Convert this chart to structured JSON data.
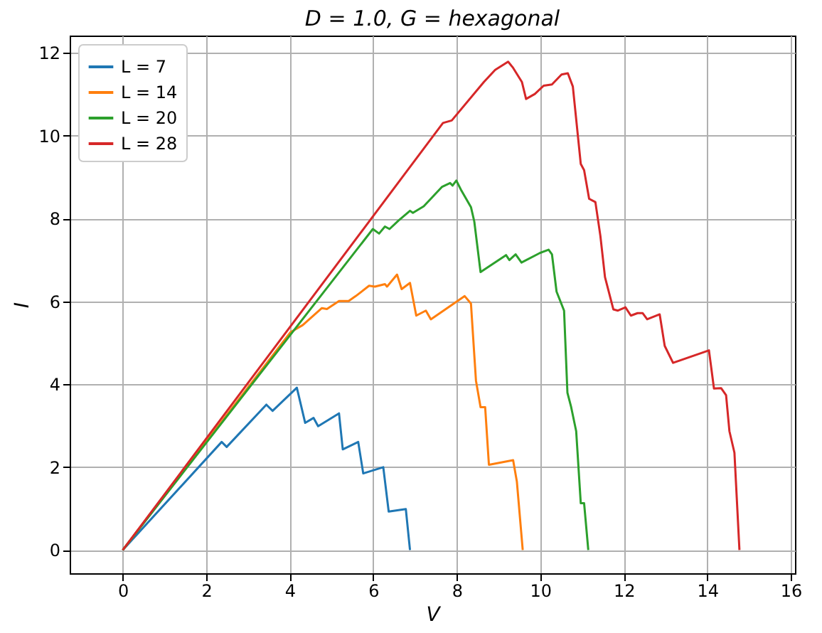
{
  "chart_data": {
    "type": "line",
    "title": "D = 1.0, G = hexagonal",
    "xlabel": "V",
    "ylabel": "I",
    "xlim": [
      -1.27,
      16.1
    ],
    "ylim": [
      -0.56,
      12.42
    ],
    "xticks": [
      0,
      2,
      4,
      6,
      8,
      10,
      12,
      14,
      16
    ],
    "yticks": [
      0,
      2,
      4,
      6,
      8,
      10,
      12
    ],
    "grid": true,
    "legend": "top left",
    "series": [
      {
        "name": "L = 7",
        "color": "#1f77b4",
        "x": [
          0,
          2.37,
          2.49,
          3.44,
          3.59,
          4.17,
          4.37,
          4.57,
          4.68,
          5.18,
          5.27,
          5.64,
          5.76,
          6.24,
          6.37,
          6.78,
          6.88
        ],
        "values": [
          0,
          2.61,
          2.49,
          3.51,
          3.36,
          3.92,
          3.07,
          3.19,
          2.99,
          3.3,
          2.43,
          2.61,
          1.85,
          2.0,
          0.93,
          0.99,
          0
        ]
      },
      {
        "name": "L = 14",
        "color": "#ff7f0e",
        "x": [
          0,
          4.02,
          4.31,
          4.77,
          4.89,
          5.18,
          5.41,
          5.58,
          5.9,
          6.04,
          6.28,
          6.33,
          6.57,
          6.68,
          6.88,
          7.03,
          7.26,
          7.38,
          8.19,
          8.34,
          8.46,
          8.57,
          8.68,
          8.77,
          9.35,
          9.44,
          9.58
        ],
        "values": [
          0,
          5.26,
          5.43,
          5.84,
          5.82,
          6.01,
          6.01,
          6.13,
          6.38,
          6.36,
          6.42,
          6.36,
          6.65,
          6.3,
          6.45,
          5.66,
          5.78,
          5.57,
          6.13,
          5.95,
          4.09,
          3.45,
          3.45,
          2.06,
          2.17,
          1.65,
          0
        ]
      },
      {
        "name": "L = 20",
        "color": "#2ca02c",
        "x": [
          0,
          5.99,
          6.14,
          6.28,
          6.39,
          6.6,
          6.88,
          6.95,
          7.21,
          7.65,
          7.84,
          7.9,
          7.99,
          8.11,
          8.34,
          8.42,
          8.57,
          9.18,
          9.26,
          9.41,
          9.55,
          9.99,
          10.2,
          10.28,
          10.39,
          10.57,
          10.65,
          10.74,
          10.86,
          10.97,
          11.05,
          11.15
        ],
        "values": [
          0,
          7.75,
          7.64,
          7.81,
          7.75,
          7.95,
          8.19,
          8.14,
          8.3,
          8.77,
          8.86,
          8.8,
          8.92,
          8.68,
          8.28,
          7.93,
          6.71,
          7.12,
          7.0,
          7.14,
          6.94,
          7.17,
          7.25,
          7.14,
          6.24,
          5.78,
          3.8,
          3.45,
          2.87,
          1.13,
          1.13,
          0
        ]
      },
      {
        "name": "L = 28",
        "color": "#d62728",
        "x": [
          0,
          7.67,
          7.88,
          8.65,
          8.92,
          9.23,
          9.35,
          9.56,
          9.66,
          9.87,
          10.08,
          10.28,
          10.51,
          10.66,
          10.78,
          10.97,
          11.05,
          11.17,
          11.32,
          11.44,
          11.55,
          11.75,
          11.86,
          12.04,
          12.17,
          12.33,
          12.45,
          12.56,
          12.86,
          12.98,
          13.18,
          14.04,
          14.16,
          14.33,
          14.45,
          14.53,
          14.65,
          14.77
        ],
        "values": [
          0,
          10.31,
          10.37,
          11.3,
          11.59,
          11.79,
          11.64,
          11.3,
          10.89,
          11.01,
          11.21,
          11.24,
          11.48,
          11.51,
          11.19,
          9.32,
          9.17,
          8.48,
          8.4,
          7.58,
          6.59,
          5.81,
          5.78,
          5.86,
          5.66,
          5.72,
          5.72,
          5.57,
          5.69,
          4.93,
          4.52,
          4.82,
          3.9,
          3.91,
          3.74,
          2.87,
          2.35,
          0
        ]
      }
    ]
  }
}
